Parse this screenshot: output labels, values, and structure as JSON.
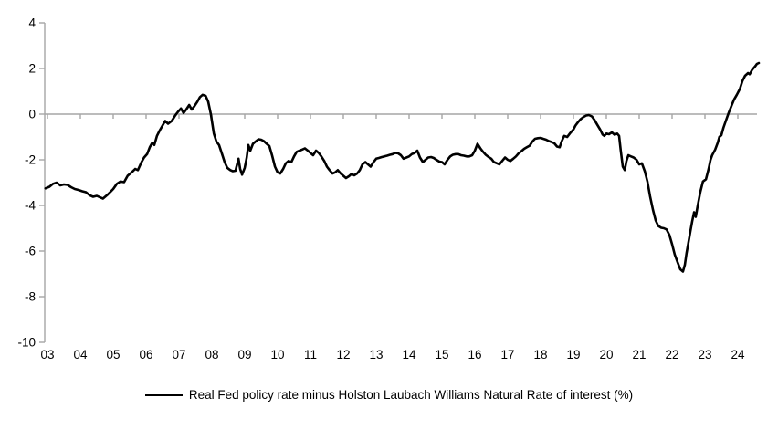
{
  "chart_data": {
    "type": "line",
    "title": "",
    "legend_label": "Real Fed policy rate minus Holston Laubach Williams Natural Rate of interest (%)",
    "legend_position": "bottom-center",
    "grid": "zero-line-only",
    "axis_color": "#A6A6A6",
    "line_color": "#000000",
    "text_color": "#000000",
    "xlim": [
      2002.94,
      2024.72
    ],
    "ylim": [
      -10,
      4
    ],
    "y_tick_values": [
      4,
      2,
      0,
      -2,
      -4,
      -6,
      -8,
      -10
    ],
    "y_tick_labels": [
      "4",
      "2",
      "0",
      "-2",
      "-4",
      "-6",
      "-8",
      "-10"
    ],
    "x_tick_years": [
      2003,
      2004,
      2005,
      2006,
      2007,
      2008,
      2009,
      2010,
      2011,
      2012,
      2013,
      2014,
      2015,
      2016,
      2017,
      2018,
      2019,
      2020,
      2021,
      2022,
      2023,
      2024
    ],
    "x_tick_labels": [
      "03",
      "04",
      "05",
      "06",
      "07",
      "08",
      "09",
      "10",
      "11",
      "12",
      "13",
      "14",
      "15",
      "16",
      "17",
      "18",
      "19",
      "20",
      "21",
      "22",
      "23",
      "24"
    ],
    "series": [
      {
        "name": "Real Fed policy rate minus Holston Laubach Williams Natural Rate of interest (%)",
        "color": "#000000",
        "points": [
          [
            2002.94,
            -3.25
          ],
          [
            2003.06,
            -3.18
          ],
          [
            2003.17,
            -3.05
          ],
          [
            2003.28,
            -3.0
          ],
          [
            2003.39,
            -3.12
          ],
          [
            2003.5,
            -3.08
          ],
          [
            2003.61,
            -3.1
          ],
          [
            2003.72,
            -3.2
          ],
          [
            2003.83,
            -3.28
          ],
          [
            2003.94,
            -3.32
          ],
          [
            2004.06,
            -3.38
          ],
          [
            2004.17,
            -3.42
          ],
          [
            2004.28,
            -3.55
          ],
          [
            2004.39,
            -3.62
          ],
          [
            2004.5,
            -3.58
          ],
          [
            2004.61,
            -3.65
          ],
          [
            2004.69,
            -3.7
          ],
          [
            2004.81,
            -3.55
          ],
          [
            2004.92,
            -3.4
          ],
          [
            2005.0,
            -3.28
          ],
          [
            2005.11,
            -3.05
          ],
          [
            2005.22,
            -2.95
          ],
          [
            2005.33,
            -2.98
          ],
          [
            2005.44,
            -2.7
          ],
          [
            2005.56,
            -2.55
          ],
          [
            2005.67,
            -2.4
          ],
          [
            2005.75,
            -2.45
          ],
          [
            2005.86,
            -2.1
          ],
          [
            2005.94,
            -1.9
          ],
          [
            2006.03,
            -1.75
          ],
          [
            2006.11,
            -1.45
          ],
          [
            2006.19,
            -1.25
          ],
          [
            2006.25,
            -1.35
          ],
          [
            2006.33,
            -0.95
          ],
          [
            2006.42,
            -0.7
          ],
          [
            2006.5,
            -0.5
          ],
          [
            2006.58,
            -0.3
          ],
          [
            2006.67,
            -0.42
          ],
          [
            2006.78,
            -0.3
          ],
          [
            2006.89,
            -0.05
          ],
          [
            2006.97,
            0.1
          ],
          [
            2007.06,
            0.25
          ],
          [
            2007.14,
            0.05
          ],
          [
            2007.22,
            0.2
          ],
          [
            2007.31,
            0.4
          ],
          [
            2007.39,
            0.2
          ],
          [
            2007.47,
            0.35
          ],
          [
            2007.56,
            0.55
          ],
          [
            2007.64,
            0.75
          ],
          [
            2007.72,
            0.85
          ],
          [
            2007.81,
            0.8
          ],
          [
            2007.89,
            0.55
          ],
          [
            2007.97,
            0.0
          ],
          [
            2008.06,
            -0.85
          ],
          [
            2008.14,
            -1.2
          ],
          [
            2008.22,
            -1.35
          ],
          [
            2008.31,
            -1.75
          ],
          [
            2008.39,
            -2.1
          ],
          [
            2008.47,
            -2.35
          ],
          [
            2008.56,
            -2.45
          ],
          [
            2008.64,
            -2.5
          ],
          [
            2008.72,
            -2.48
          ],
          [
            2008.81,
            -1.95
          ],
          [
            2008.86,
            -2.4
          ],
          [
            2008.92,
            -2.65
          ],
          [
            2009.0,
            -2.35
          ],
          [
            2009.06,
            -1.9
          ],
          [
            2009.11,
            -1.35
          ],
          [
            2009.17,
            -1.6
          ],
          [
            2009.25,
            -1.3
          ],
          [
            2009.33,
            -1.2
          ],
          [
            2009.42,
            -1.1
          ],
          [
            2009.5,
            -1.12
          ],
          [
            2009.58,
            -1.18
          ],
          [
            2009.67,
            -1.3
          ],
          [
            2009.75,
            -1.4
          ],
          [
            2009.83,
            -1.8
          ],
          [
            2009.92,
            -2.3
          ],
          [
            2010.0,
            -2.55
          ],
          [
            2010.08,
            -2.6
          ],
          [
            2010.17,
            -2.4
          ],
          [
            2010.25,
            -2.15
          ],
          [
            2010.33,
            -2.05
          ],
          [
            2010.42,
            -2.1
          ],
          [
            2010.5,
            -1.85
          ],
          [
            2010.58,
            -1.65
          ],
          [
            2010.67,
            -1.6
          ],
          [
            2010.75,
            -1.55
          ],
          [
            2010.83,
            -1.5
          ],
          [
            2010.92,
            -1.6
          ],
          [
            2011.0,
            -1.7
          ],
          [
            2011.08,
            -1.8
          ],
          [
            2011.17,
            -1.6
          ],
          [
            2011.25,
            -1.7
          ],
          [
            2011.33,
            -1.85
          ],
          [
            2011.42,
            -2.05
          ],
          [
            2011.5,
            -2.3
          ],
          [
            2011.58,
            -2.45
          ],
          [
            2011.67,
            -2.6
          ],
          [
            2011.75,
            -2.55
          ],
          [
            2011.83,
            -2.45
          ],
          [
            2011.92,
            -2.6
          ],
          [
            2012.0,
            -2.7
          ],
          [
            2012.08,
            -2.8
          ],
          [
            2012.17,
            -2.72
          ],
          [
            2012.25,
            -2.62
          ],
          [
            2012.33,
            -2.68
          ],
          [
            2012.42,
            -2.6
          ],
          [
            2012.5,
            -2.45
          ],
          [
            2012.58,
            -2.2
          ],
          [
            2012.67,
            -2.1
          ],
          [
            2012.75,
            -2.2
          ],
          [
            2012.83,
            -2.3
          ],
          [
            2012.92,
            -2.1
          ],
          [
            2013.0,
            -1.95
          ],
          [
            2013.08,
            -1.92
          ],
          [
            2013.17,
            -1.88
          ],
          [
            2013.25,
            -1.85
          ],
          [
            2013.33,
            -1.82
          ],
          [
            2013.42,
            -1.78
          ],
          [
            2013.5,
            -1.75
          ],
          [
            2013.58,
            -1.7
          ],
          [
            2013.67,
            -1.72
          ],
          [
            2013.75,
            -1.8
          ],
          [
            2013.83,
            -1.95
          ],
          [
            2013.92,
            -1.9
          ],
          [
            2014.0,
            -1.85
          ],
          [
            2014.08,
            -1.75
          ],
          [
            2014.17,
            -1.7
          ],
          [
            2014.25,
            -1.6
          ],
          [
            2014.33,
            -1.9
          ],
          [
            2014.42,
            -2.1
          ],
          [
            2014.5,
            -2.0
          ],
          [
            2014.58,
            -1.9
          ],
          [
            2014.67,
            -1.88
          ],
          [
            2014.75,
            -1.92
          ],
          [
            2014.83,
            -2.0
          ],
          [
            2014.92,
            -2.08
          ],
          [
            2015.0,
            -2.1
          ],
          [
            2015.08,
            -2.2
          ],
          [
            2015.17,
            -2.0
          ],
          [
            2015.25,
            -1.85
          ],
          [
            2015.33,
            -1.78
          ],
          [
            2015.42,
            -1.75
          ],
          [
            2015.5,
            -1.75
          ],
          [
            2015.58,
            -1.8
          ],
          [
            2015.67,
            -1.82
          ],
          [
            2015.75,
            -1.85
          ],
          [
            2015.83,
            -1.85
          ],
          [
            2015.92,
            -1.8
          ],
          [
            2016.0,
            -1.6
          ],
          [
            2016.08,
            -1.3
          ],
          [
            2016.17,
            -1.5
          ],
          [
            2016.25,
            -1.65
          ],
          [
            2016.33,
            -1.78
          ],
          [
            2016.42,
            -1.88
          ],
          [
            2016.5,
            -1.95
          ],
          [
            2016.58,
            -2.1
          ],
          [
            2016.67,
            -2.15
          ],
          [
            2016.75,
            -2.2
          ],
          [
            2016.83,
            -2.05
          ],
          [
            2016.92,
            -1.9
          ],
          [
            2017.0,
            -2.0
          ],
          [
            2017.08,
            -2.05
          ],
          [
            2017.17,
            -1.95
          ],
          [
            2017.25,
            -1.85
          ],
          [
            2017.33,
            -1.72
          ],
          [
            2017.42,
            -1.62
          ],
          [
            2017.5,
            -1.52
          ],
          [
            2017.58,
            -1.45
          ],
          [
            2017.67,
            -1.38
          ],
          [
            2017.75,
            -1.2
          ],
          [
            2017.83,
            -1.08
          ],
          [
            2017.92,
            -1.05
          ],
          [
            2018.0,
            -1.04
          ],
          [
            2018.08,
            -1.08
          ],
          [
            2018.17,
            -1.12
          ],
          [
            2018.25,
            -1.18
          ],
          [
            2018.33,
            -1.22
          ],
          [
            2018.42,
            -1.28
          ],
          [
            2018.5,
            -1.42
          ],
          [
            2018.58,
            -1.45
          ],
          [
            2018.64,
            -1.2
          ],
          [
            2018.72,
            -0.95
          ],
          [
            2018.81,
            -1.0
          ],
          [
            2018.89,
            -0.85
          ],
          [
            2019.0,
            -0.67
          ],
          [
            2019.06,
            -0.5
          ],
          [
            2019.14,
            -0.35
          ],
          [
            2019.22,
            -0.22
          ],
          [
            2019.31,
            -0.12
          ],
          [
            2019.39,
            -0.06
          ],
          [
            2019.47,
            -0.04
          ],
          [
            2019.56,
            -0.1
          ],
          [
            2019.64,
            -0.25
          ],
          [
            2019.72,
            -0.45
          ],
          [
            2019.81,
            -0.67
          ],
          [
            2019.89,
            -0.9
          ],
          [
            2019.94,
            -0.95
          ],
          [
            2020.0,
            -0.85
          ],
          [
            2020.08,
            -0.88
          ],
          [
            2020.17,
            -0.8
          ],
          [
            2020.25,
            -0.9
          ],
          [
            2020.33,
            -0.85
          ],
          [
            2020.39,
            -0.95
          ],
          [
            2020.44,
            -1.6
          ],
          [
            2020.5,
            -2.3
          ],
          [
            2020.56,
            -2.45
          ],
          [
            2020.61,
            -2.05
          ],
          [
            2020.67,
            -1.8
          ],
          [
            2020.75,
            -1.85
          ],
          [
            2020.83,
            -1.9
          ],
          [
            2020.92,
            -2.0
          ],
          [
            2021.0,
            -2.2
          ],
          [
            2021.08,
            -2.15
          ],
          [
            2021.17,
            -2.5
          ],
          [
            2021.25,
            -2.95
          ],
          [
            2021.33,
            -3.6
          ],
          [
            2021.42,
            -4.2
          ],
          [
            2021.5,
            -4.65
          ],
          [
            2021.58,
            -4.9
          ],
          [
            2021.67,
            -4.98
          ],
          [
            2021.75,
            -5.0
          ],
          [
            2021.83,
            -5.05
          ],
          [
            2021.92,
            -5.3
          ],
          [
            2022.0,
            -5.7
          ],
          [
            2022.08,
            -6.15
          ],
          [
            2022.17,
            -6.5
          ],
          [
            2022.25,
            -6.8
          ],
          [
            2022.33,
            -6.9
          ],
          [
            2022.39,
            -6.6
          ],
          [
            2022.44,
            -6.1
          ],
          [
            2022.5,
            -5.6
          ],
          [
            2022.56,
            -5.1
          ],
          [
            2022.61,
            -4.7
          ],
          [
            2022.67,
            -4.3
          ],
          [
            2022.72,
            -4.5
          ],
          [
            2022.78,
            -4.0
          ],
          [
            2022.86,
            -3.4
          ],
          [
            2022.94,
            -2.95
          ],
          [
            2023.03,
            -2.85
          ],
          [
            2023.11,
            -2.4
          ],
          [
            2023.17,
            -2.0
          ],
          [
            2023.22,
            -1.8
          ],
          [
            2023.31,
            -1.55
          ],
          [
            2023.39,
            -1.25
          ],
          [
            2023.44,
            -1.0
          ],
          [
            2023.5,
            -0.92
          ],
          [
            2023.56,
            -0.6
          ],
          [
            2023.64,
            -0.28
          ],
          [
            2023.72,
            0.05
          ],
          [
            2023.81,
            0.38
          ],
          [
            2023.89,
            0.65
          ],
          [
            2023.97,
            0.85
          ],
          [
            2024.06,
            1.1
          ],
          [
            2024.14,
            1.45
          ],
          [
            2024.22,
            1.68
          ],
          [
            2024.31,
            1.8
          ],
          [
            2024.36,
            1.75
          ],
          [
            2024.44,
            1.95
          ],
          [
            2024.53,
            2.1
          ],
          [
            2024.58,
            2.2
          ],
          [
            2024.64,
            2.24
          ]
        ]
      }
    ]
  }
}
